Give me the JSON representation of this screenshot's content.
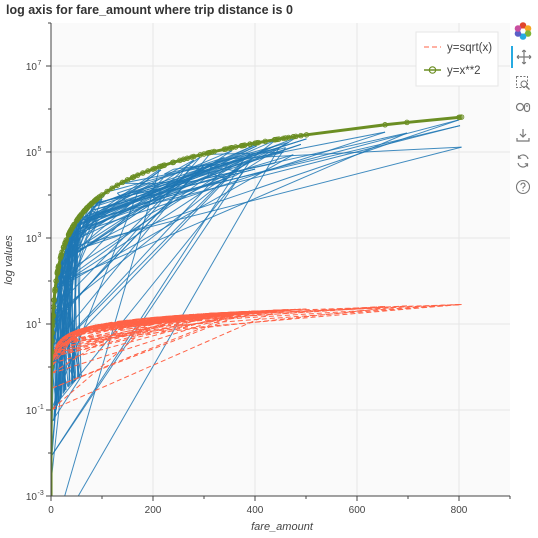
{
  "chart_data": {
    "type": "line",
    "title": "log axis for fare_amount where trip distance is 0",
    "xlabel": "fare_amount",
    "ylabel": "log values",
    "xlim": [
      0,
      900
    ],
    "ylim": [
      0.001,
      100000000
    ],
    "y_scale": "log",
    "grid": true,
    "legend_placement": "top-right",
    "x_ticks": [
      "0",
      "200",
      "400",
      "600",
      "800"
    ],
    "y_ticks": [
      {
        "base": "10",
        "exp": "7",
        "value": 10000000
      },
      {
        "base": "10",
        "exp": "5",
        "value": 100000
      },
      {
        "base": "10",
        "exp": "3",
        "value": 1000
      },
      {
        "base": "10",
        "exp": "1",
        "value": 10
      },
      {
        "base": "10",
        "exp": "-1",
        "value": 0.1
      },
      {
        "base": "10",
        "exp": "-3",
        "value": 0.001
      }
    ],
    "series": [
      {
        "name": "y=sqrt(x)",
        "color": "#ff6347",
        "style": "dashed",
        "formula": "sqrt"
      },
      {
        "name": "y=x**2",
        "color": "#6b8e23",
        "style": "solid-circle-markers",
        "formula": "square"
      }
    ],
    "fare_samples": [
      802,
      805,
      800,
      698,
      655,
      501,
      490,
      475,
      460,
      440,
      420,
      400,
      390,
      380,
      362,
      350,
      340,
      320,
      300,
      280,
      260,
      240,
      220,
      200,
      190,
      180,
      170,
      160,
      150,
      140,
      130,
      120,
      110,
      100,
      95,
      90,
      85,
      80,
      75,
      70,
      65,
      60,
      55,
      50,
      45,
      40,
      35,
      30,
      25,
      20,
      15,
      10,
      8,
      6,
      5,
      4,
      3,
      2.5,
      2,
      1.5,
      1,
      0.5,
      0.1,
      0.01
    ],
    "blue_line_color": "#1f77b4"
  },
  "toolbar": {
    "tools": [
      {
        "name": "bokeh-logo-icon"
      },
      {
        "name": "pan-icon"
      },
      {
        "name": "box-zoom-icon"
      },
      {
        "name": "wheel-zoom-icon"
      },
      {
        "name": "save-icon"
      },
      {
        "name": "reset-icon"
      },
      {
        "name": "help-icon"
      }
    ]
  }
}
